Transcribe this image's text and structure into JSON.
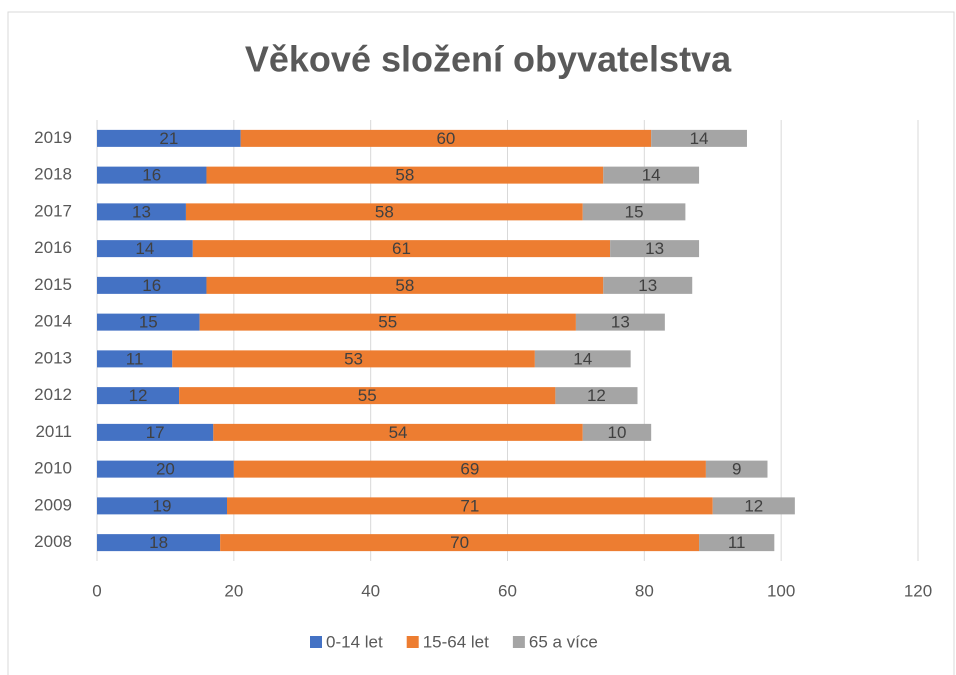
{
  "chart_data": {
    "type": "stacked_barh",
    "title": "Věkové složení obyvatelstva",
    "categories": [
      "2008",
      "2009",
      "2010",
      "2011",
      "2012",
      "2013",
      "2014",
      "2015",
      "2016",
      "2017",
      "2018",
      "2019"
    ],
    "series": [
      {
        "name": "0-14 let",
        "color": "#4472c4",
        "values": [
          18,
          19,
          20,
          17,
          12,
          11,
          15,
          16,
          14,
          13,
          16,
          21
        ]
      },
      {
        "name": "15-64 let",
        "color": "#ed7d31",
        "values": [
          70,
          71,
          69,
          54,
          55,
          53,
          55,
          58,
          61,
          58,
          58,
          60
        ]
      },
      {
        "name": "65 a více",
        "color": "#a5a5a5",
        "values": [
          11,
          12,
          9,
          10,
          12,
          14,
          13,
          13,
          13,
          15,
          14,
          14
        ]
      }
    ],
    "xlim": [
      0,
      120
    ],
    "xticks": [
      0,
      20,
      40,
      60,
      80,
      100,
      120
    ],
    "grid": true,
    "legend": "bottom"
  }
}
